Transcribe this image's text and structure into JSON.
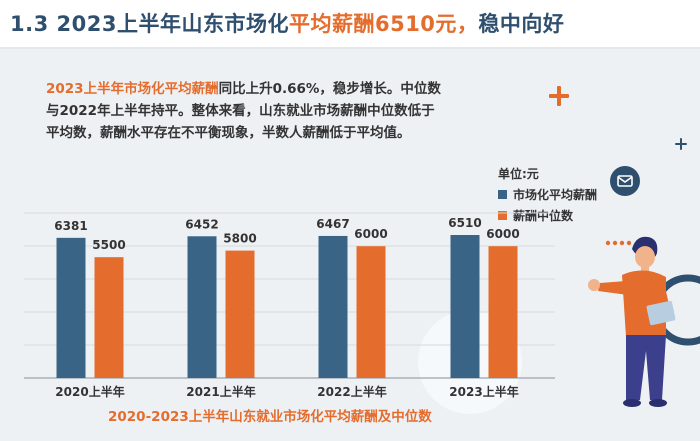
{
  "header": {
    "title_part1": "1.3  2023上半年山东市场化",
    "title_part2": "平均薪酬6510元，",
    "title_part3": "稳中向好"
  },
  "summary": {
    "highlight": "2023上半年市场化平均薪酬",
    "text": "同比上升0.66%，稳步增长。中位数与2022年上半年持平。整体来看，山东就业市场薪酬中位数低于平均数，薪酬水平存在不平衡现象，半数人薪酬低于平均值。"
  },
  "colors": {
    "series_average": "#3a6486",
    "series_median": "#e46c2c",
    "title_dark": "#2f4f6f",
    "accent_orange": "#e46c2c"
  },
  "chart_data": {
    "type": "bar",
    "unit_label": "单位:元",
    "categories": [
      "2020上半年",
      "2021上半年",
      "2022上半年",
      "2023上半年"
    ],
    "series": [
      {
        "name": "市场化平均薪酬",
        "values": [
          6381,
          6452,
          6467,
          6510
        ]
      },
      {
        "name": "薪酬中位数",
        "values": [
          5500,
          5800,
          6000,
          6000
        ]
      }
    ],
    "caption": "2020-2023上半年山东就业市场化平均薪酬及中位数",
    "legend_position": "top-right",
    "grid": true
  },
  "icons": [
    "plus-icon",
    "mail-icon",
    "person-illustration"
  ]
}
